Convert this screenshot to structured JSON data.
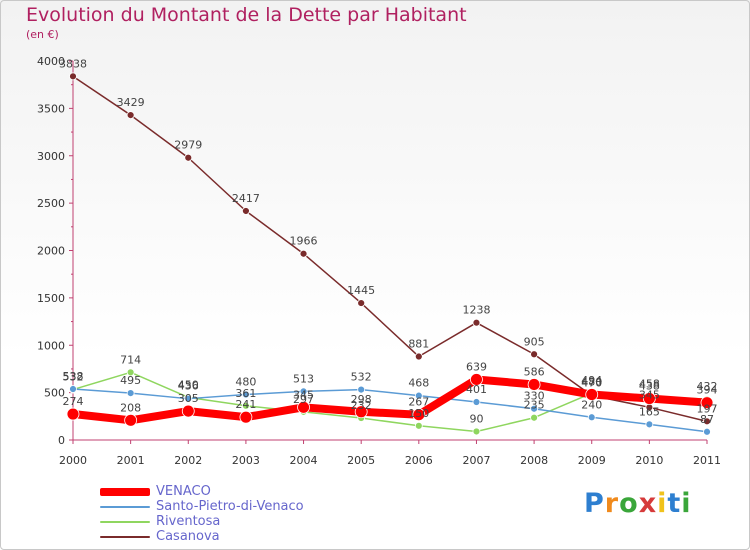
{
  "header": {
    "title": "Evolution du Montant de la Dette par Habitant",
    "subtitle": "(en €)"
  },
  "logo": {
    "text": "Proxiti",
    "colors": [
      "#2e7fd0",
      "#f08a1c",
      "#3aa63a",
      "#d63a3a",
      "#f0c21c",
      "#2e7fd0",
      "#3aa63a"
    ]
  },
  "chart_data": {
    "type": "line",
    "title": "Evolution du Montant de la Dette par Habitant",
    "subtitle": "(en €)",
    "x": [
      2000,
      2001,
      2002,
      2003,
      2004,
      2005,
      2006,
      2007,
      2008,
      2009,
      2010,
      2011
    ],
    "xlim": [
      2000,
      2011
    ],
    "ylim": [
      0,
      4000
    ],
    "yticks": [
      0,
      500,
      1000,
      1500,
      2000,
      2500,
      3000,
      3500,
      4000
    ],
    "grid": false,
    "legend": "bottom-left",
    "series": [
      {
        "name": "VENACO",
        "color": "#ff0000",
        "values": [
          274,
          208,
          305,
          241,
          345,
          298,
          267,
          639,
          586,
          480,
          438,
          394
        ]
      },
      {
        "name": "Santo-Pietro-di-Venaco",
        "color": "#5b9bd5",
        "values": [
          538,
          495,
          436,
          480,
          513,
          532,
          468,
          401,
          330,
          240,
          165,
          87
        ]
      },
      {
        "name": "Riventosa",
        "color": "#8fd65f",
        "values": [
          532,
          714,
          450,
          361,
          297,
          232,
          150,
          90,
          235,
          494,
          458,
          432
        ]
      },
      {
        "name": "Casanova",
        "color": "#7a2b2b",
        "values": [
          3838,
          3429,
          2979,
          2417,
          1966,
          1445,
          881,
          1238,
          905,
          470,
          345,
          197
        ]
      }
    ],
    "data_labels": [
      {
        "series": "VENACO",
        "labels": [
          "274",
          "208",
          "305",
          "241",
          "345",
          "298",
          "267",
          "639",
          "586",
          "480",
          "438",
          "394"
        ]
      },
      {
        "series": "Santo-Pietro-di-Venaco",
        "labels": [
          "538",
          "495",
          "436",
          "480",
          "513",
          "532",
          "468",
          "401",
          "330",
          "240",
          "165",
          "87"
        ]
      },
      {
        "series": "Riventosa",
        "labels": [
          "532",
          "714",
          "450",
          "361",
          "297",
          "232",
          "150",
          "90",
          "235",
          "494",
          "458",
          "432"
        ]
      },
      {
        "series": "Casanova",
        "labels": [
          "3838",
          "3429",
          "2979",
          "2417",
          "1966",
          "1445",
          "881",
          "1238",
          "905",
          "470",
          "345",
          "197"
        ]
      }
    ]
  }
}
